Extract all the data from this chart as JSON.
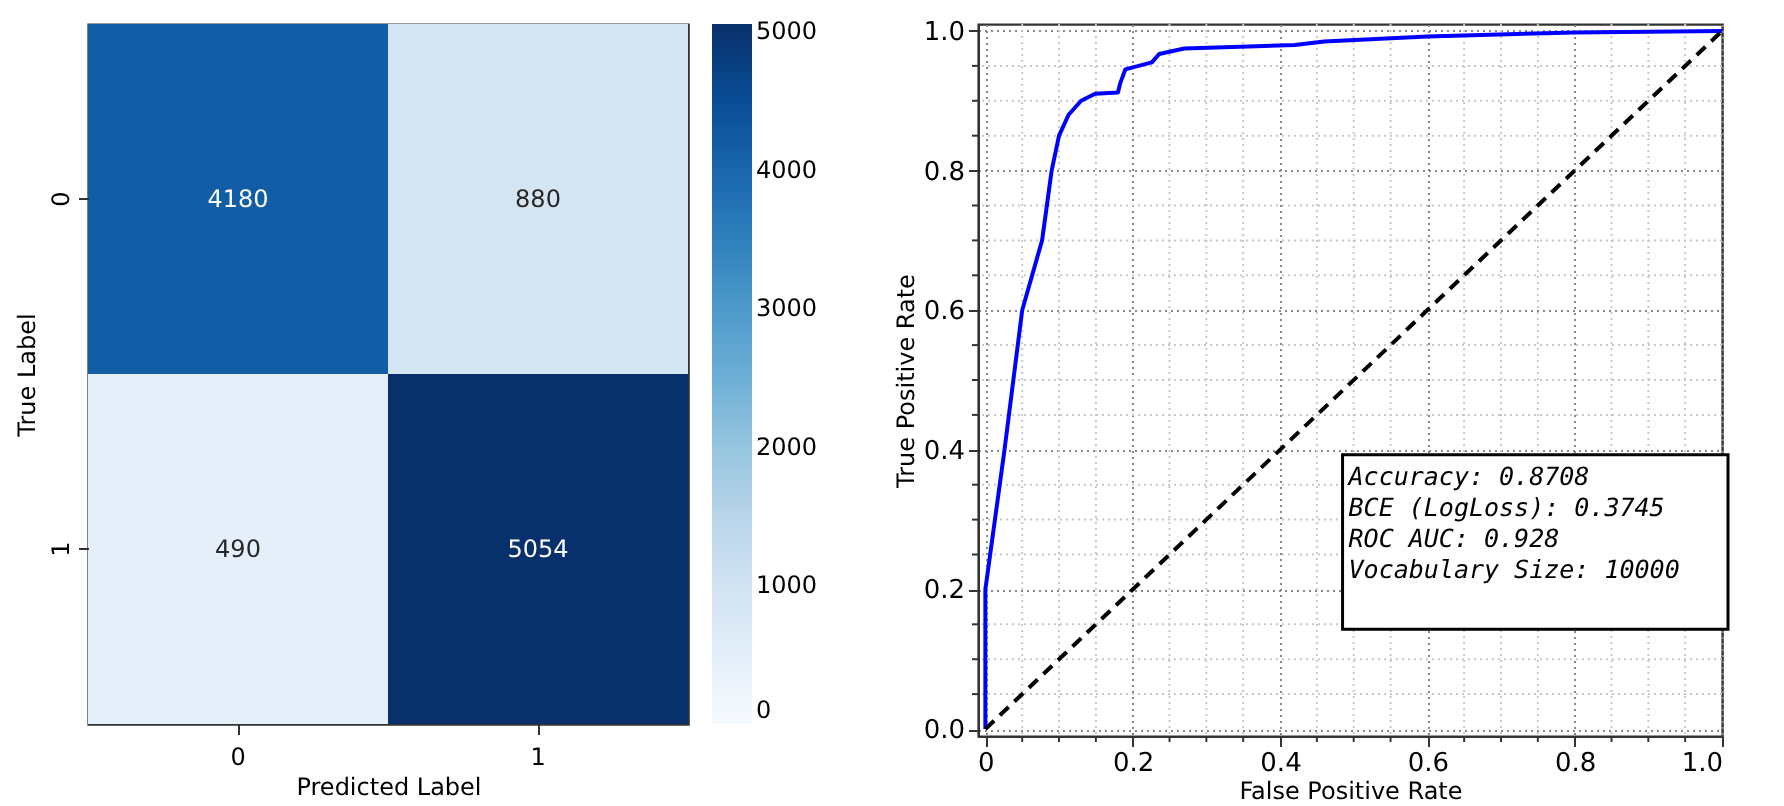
{
  "chart_data": [
    {
      "type": "heatmap",
      "xlabel": "Predicted Label",
      "ylabel": "True Label",
      "categories": [
        "0",
        "1"
      ],
      "y_categories": [
        "0",
        "1"
      ],
      "cells": [
        [
          4180,
          880
        ],
        [
          490,
          5054
        ]
      ],
      "data_labels": true,
      "clim": [
        0,
        5054
      ],
      "cticks": [
        0,
        1000,
        2000,
        3000,
        4000,
        5000
      ]
    },
    {
      "type": "line",
      "xlabel": "False Positive Rate",
      "ylabel": "True Positive Rate",
      "xlim": [
        -0.01,
        1.0
      ],
      "ylim": [
        -0.01,
        1.01
      ],
      "xticks": [
        0,
        {
          "value": 0.05,
          "label": null
        },
        {
          "value": 0.1,
          "label": null
        },
        {
          "value": 0.15,
          "label": null
        },
        {
          "value": 0.2,
          "label": "0.2"
        },
        {
          "value": 0.25,
          "label": null
        },
        {
          "value": 0.3,
          "label": null
        },
        {
          "value": 0.35,
          "label": null
        },
        {
          "value": 0.4,
          "label": "0.4"
        },
        {
          "value": 0.45,
          "label": null
        },
        {
          "value": 0.5,
          "label": null
        },
        {
          "value": 0.55,
          "label": null
        },
        {
          "value": 0.6,
          "label": "0.6"
        },
        {
          "value": 0.65,
          "label": null
        },
        {
          "value": 0.7,
          "label": null
        },
        {
          "value": 0.75,
          "label": null
        },
        {
          "value": 0.8,
          "label": "0.8"
        },
        {
          "value": 0.85,
          "label": null
        },
        {
          "value": 0.9,
          "label": null
        },
        {
          "value": 0.95,
          "label": null
        },
        {
          "value": 1.0,
          "label": "1.0"
        }
      ],
      "yticks": [
        {
          "value": 0,
          "label": "0.0"
        },
        {
          "value": 0.05,
          "label": null
        },
        {
          "value": 0.1,
          "label": null
        },
        {
          "value": 0.15,
          "label": null
        },
        {
          "value": 0.2,
          "label": "0.2"
        },
        {
          "value": 0.25,
          "label": null
        },
        {
          "value": 0.3,
          "label": null
        },
        {
          "value": 0.35,
          "label": null
        },
        {
          "value": 0.4,
          "label": "0.4"
        },
        {
          "value": 0.45,
          "label": null
        },
        {
          "value": 0.5,
          "label": null
        },
        {
          "value": 0.55,
          "label": null
        },
        {
          "value": 0.6,
          "label": "0.6"
        },
        {
          "value": 0.65,
          "label": null
        },
        {
          "value": 0.7,
          "label": null
        },
        {
          "value": 0.75,
          "label": null
        },
        {
          "value": 0.8,
          "label": "0.8"
        },
        {
          "value": 0.85,
          "label": null
        },
        {
          "value": 0.9,
          "label": null
        },
        {
          "value": 0.95,
          "label": null
        },
        {
          "value": 1.0,
          "label": "1.0"
        }
      ],
      "grid": true,
      "series": [
        {
          "color": "#0000ff",
          "line_style": "solid",
          "x": [
            0,
            0,
            0.026,
            0.05,
            0.077,
            0.09,
            0.1,
            0.113,
            0.13,
            0.149,
            0.18,
            0.183,
            0.19,
            0.226,
            0.236,
            0.27,
            0.42,
            0.46,
            0.6,
            0.8,
            1.0
          ],
          "values": [
            0,
            0.2,
            0.4,
            0.6,
            0.7,
            0.8,
            0.85,
            0.88,
            0.9,
            0.91,
            0.912,
            0.925,
            0.945,
            0.955,
            0.967,
            0.975,
            0.98,
            0.985,
            0.992,
            0.998,
            1.0
          ]
        },
        {
          "color": "#000000",
          "line_style": "dashed",
          "x": [
            0,
            1
          ],
          "values": [
            0,
            1
          ]
        }
      ],
      "annotations": [
        "Accuracy: 0.8708\nBCE (LogLoss): 0.3745\nROC AUC: 0.928\n\nVocabulary Size: 10000"
      ]
    }
  ]
}
